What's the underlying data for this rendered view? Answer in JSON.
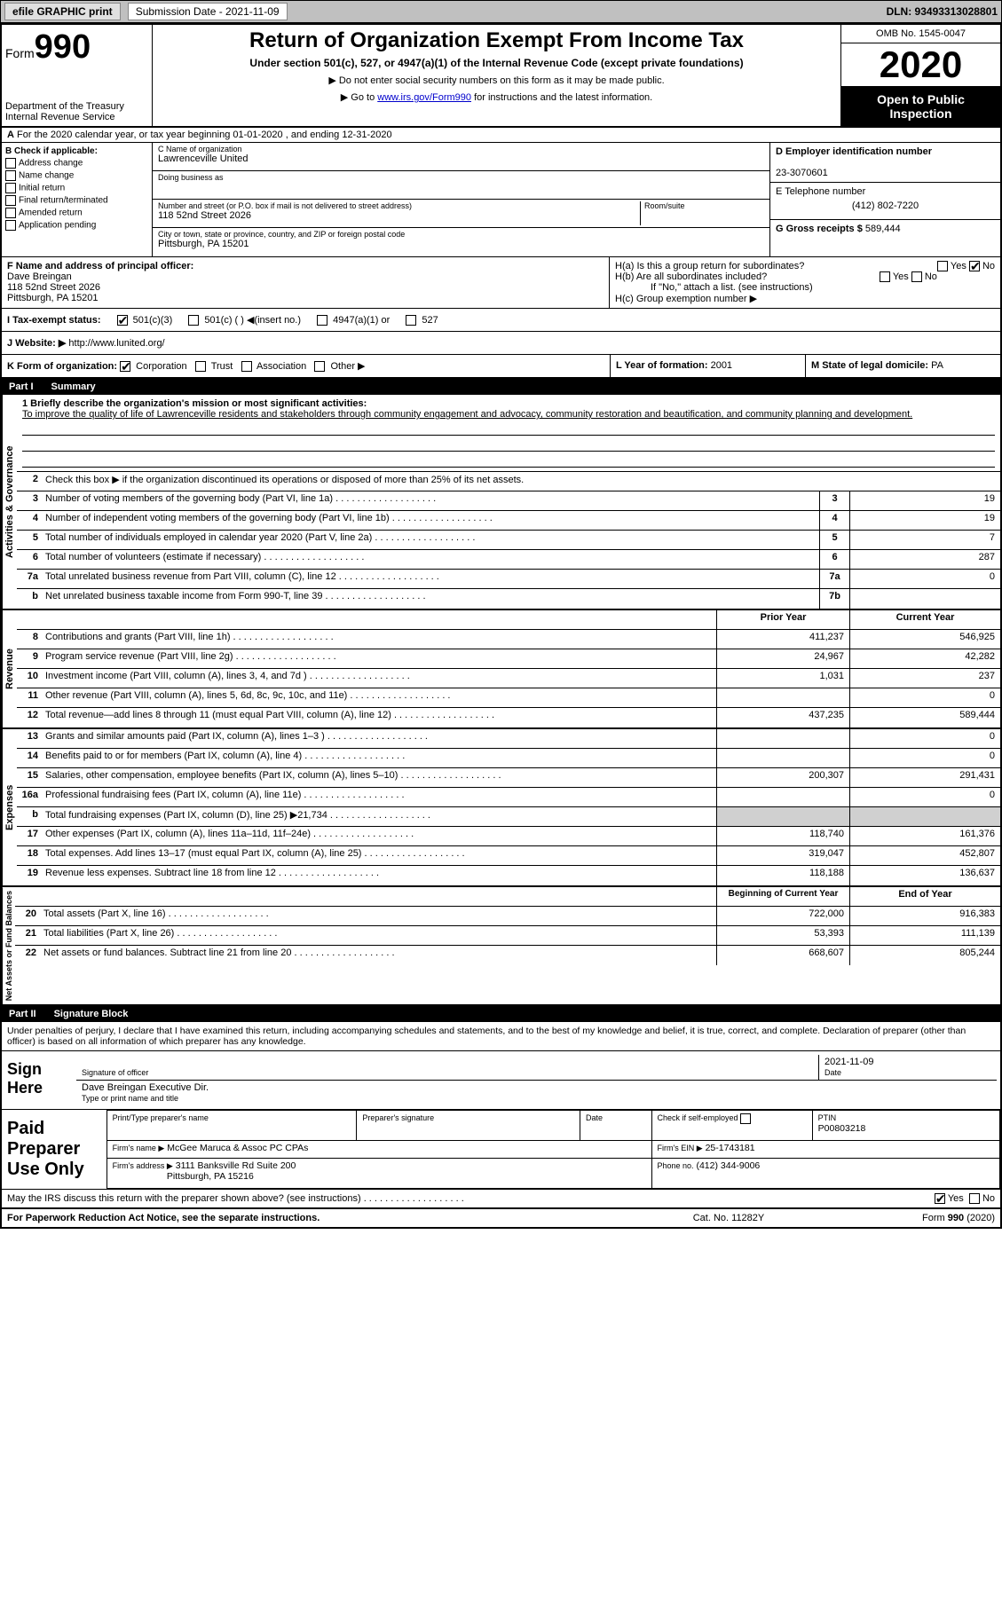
{
  "topbar": {
    "efile": "efile GRAPHIC print",
    "subdate_label": "Submission Date - 2021-11-09",
    "dln": "DLN: 93493313028801"
  },
  "header": {
    "form_label": "Form",
    "form_no": "990",
    "dept": "Department of the Treasury",
    "irs": "Internal Revenue Service",
    "title": "Return of Organization Exempt From Income Tax",
    "sub": "Under section 501(c), 527, or 4947(a)(1) of the Internal Revenue Code (except private foundations)",
    "note1": "▶ Do not enter social security numbers on this form as it may be made public.",
    "note2_pre": "▶ Go to ",
    "note2_link": "www.irs.gov/Form990",
    "note2_post": " for instructions and the latest information.",
    "omb": "OMB No. 1545-0047",
    "year": "2020",
    "inspect": "Open to Public Inspection"
  },
  "A": "For the 2020 calendar year, or tax year beginning 01-01-2020    , and ending 12-31-2020",
  "B": {
    "label": "B Check if applicable:",
    "opts": [
      "Address change",
      "Name change",
      "Initial return",
      "Final return/terminated",
      "Amended return",
      "Application pending"
    ]
  },
  "C": {
    "name_label": "C Name of organization",
    "name": "Lawrenceville United",
    "dba_label": "Doing business as",
    "dba": "",
    "addr_label": "Number and street (or P.O. box if mail is not delivered to street address)",
    "room_label": "Room/suite",
    "addr": "118 52nd Street 2026",
    "city_label": "City or town, state or province, country, and ZIP or foreign postal code",
    "city": "Pittsburgh, PA  15201"
  },
  "D": {
    "label": "D Employer identification number",
    "val": "23-3070601"
  },
  "E": {
    "label": "E Telephone number",
    "val": "(412) 802-7220"
  },
  "G": {
    "label": "G Gross receipts $",
    "val": "589,444"
  },
  "F": {
    "label": "F  Name and address of principal officer:",
    "name": "Dave Breingan",
    "addr1": "118 52nd Street 2026",
    "addr2": "Pittsburgh, PA  15201"
  },
  "H": {
    "a": "H(a)  Is this a group return for subordinates?",
    "b": "H(b)  Are all subordinates included?",
    "bnote": "If \"No,\" attach a list. (see instructions)",
    "c": "H(c)  Group exemption number ▶",
    "yes": "Yes",
    "no": "No"
  },
  "I": {
    "label": "I   Tax-exempt status:",
    "o1": "501(c)(3)",
    "o2": "501(c) (  ) ◀(insert no.)",
    "o3": "4947(a)(1) or",
    "o4": "527"
  },
  "J": {
    "label": "J   Website: ▶",
    "val": "http://www.lunited.org/"
  },
  "K": {
    "label": "K Form of organization:",
    "c": "Corporation",
    "t": "Trust",
    "a": "Association",
    "o": "Other ▶"
  },
  "L": {
    "label": "L Year of formation:",
    "val": "2001"
  },
  "M": {
    "label": "M State of legal domicile:",
    "val": "PA"
  },
  "part1": {
    "num": "Part I",
    "title": "Summary"
  },
  "summary": {
    "q1": "1   Briefly describe the organization's mission or most significant activities:",
    "mission": "To improve the quality of life of Lawrenceville residents and stakeholders through community engagement and advocacy, community restoration and beautification, and community planning and development.",
    "q2": "Check this box ▶       if the organization discontinued its operations or disposed of more than 25% of its net assets.",
    "rows_gov": [
      {
        "n": "3",
        "d": "Number of voting members of the governing body (Part VI, line 1a)",
        "b": "3",
        "v": "19"
      },
      {
        "n": "4",
        "d": "Number of independent voting members of the governing body (Part VI, line 1b)",
        "b": "4",
        "v": "19"
      },
      {
        "n": "5",
        "d": "Total number of individuals employed in calendar year 2020 (Part V, line 2a)",
        "b": "5",
        "v": "7"
      },
      {
        "n": "6",
        "d": "Total number of volunteers (estimate if necessary)",
        "b": "6",
        "v": "287"
      },
      {
        "n": "7a",
        "d": "Total unrelated business revenue from Part VIII, column (C), line 12",
        "b": "7a",
        "v": "0"
      },
      {
        "n": "b",
        "d": "Net unrelated business taxable income from Form 990-T, line 39",
        "b": "7b",
        "v": ""
      }
    ],
    "col_prior": "Prior Year",
    "col_curr": "Current Year",
    "rows_rev": [
      {
        "n": "8",
        "d": "Contributions and grants (Part VIII, line 1h)",
        "p": "411,237",
        "c": "546,925"
      },
      {
        "n": "9",
        "d": "Program service revenue (Part VIII, line 2g)",
        "p": "24,967",
        "c": "42,282"
      },
      {
        "n": "10",
        "d": "Investment income (Part VIII, column (A), lines 3, 4, and 7d )",
        "p": "1,031",
        "c": "237"
      },
      {
        "n": "11",
        "d": "Other revenue (Part VIII, column (A), lines 5, 6d, 8c, 9c, 10c, and 11e)",
        "p": "",
        "c": "0"
      },
      {
        "n": "12",
        "d": "Total revenue—add lines 8 through 11 (must equal Part VIII, column (A), line 12)",
        "p": "437,235",
        "c": "589,444"
      }
    ],
    "rows_exp": [
      {
        "n": "13",
        "d": "Grants and similar amounts paid (Part IX, column (A), lines 1–3 )",
        "p": "",
        "c": "0"
      },
      {
        "n": "14",
        "d": "Benefits paid to or for members (Part IX, column (A), line 4)",
        "p": "",
        "c": "0"
      },
      {
        "n": "15",
        "d": "Salaries, other compensation, employee benefits (Part IX, column (A), lines 5–10)",
        "p": "200,307",
        "c": "291,431"
      },
      {
        "n": "16a",
        "d": "Professional fundraising fees (Part IX, column (A), line 11e)",
        "p": "",
        "c": "0"
      },
      {
        "n": "b",
        "d": "Total fundraising expenses (Part IX, column (D), line 25) ▶21,734",
        "p": "__shade__",
        "c": "__shade__"
      },
      {
        "n": "17",
        "d": "Other expenses (Part IX, column (A), lines 11a–11d, 11f–24e)",
        "p": "118,740",
        "c": "161,376"
      },
      {
        "n": "18",
        "d": "Total expenses. Add lines 13–17 (must equal Part IX, column (A), line 25)",
        "p": "319,047",
        "c": "452,807"
      },
      {
        "n": "19",
        "d": "Revenue less expenses. Subtract line 18 from line 12",
        "p": "118,188",
        "c": "136,637"
      }
    ],
    "col_beg": "Beginning of Current Year",
    "col_end": "End of Year",
    "rows_net": [
      {
        "n": "20",
        "d": "Total assets (Part X, line 16)",
        "p": "722,000",
        "c": "916,383"
      },
      {
        "n": "21",
        "d": "Total liabilities (Part X, line 26)",
        "p": "53,393",
        "c": "111,139"
      },
      {
        "n": "22",
        "d": "Net assets or fund balances. Subtract line 21 from line 20",
        "p": "668,607",
        "c": "805,244"
      }
    ],
    "side_gov": "Activities & Governance",
    "side_rev": "Revenue",
    "side_exp": "Expenses",
    "side_net": "Net Assets or Fund Balances"
  },
  "part2": {
    "num": "Part II",
    "title": "Signature Block"
  },
  "sig": {
    "decl": "Under penalties of perjury, I declare that I have examined this return, including accompanying schedules and statements, and to the best of my knowledge and belief, it is true, correct, and complete. Declaration of preparer (other than officer) is based on all information of which preparer has any knowledge.",
    "sign_here": "Sign Here",
    "sig_officer": "Signature of officer",
    "date_label": "Date",
    "date": "2021-11-09",
    "name": "Dave Breingan  Executive Dir.",
    "typeprint": "Type or print name and title"
  },
  "prep": {
    "label": "Paid Preparer Use Only",
    "h_print": "Print/Type preparer's name",
    "h_sig": "Preparer's signature",
    "h_date": "Date",
    "h_self": "Check        if self-employed",
    "h_ptin": "PTIN",
    "ptin": "P00803218",
    "firm_label": "Firm's name     ▶",
    "firm": "McGee Maruca & Assoc PC CPAs",
    "ein_label": "Firm's EIN ▶",
    "ein": "25-1743181",
    "addr_label": "Firm's address ▶",
    "addr1": "3111 Banksville Rd Suite 200",
    "addr2": "Pittsburgh, PA  15216",
    "phone_label": "Phone no.",
    "phone": "(412) 344-9006"
  },
  "may": {
    "q": "May the IRS discuss this return with the preparer shown above? (see instructions)",
    "yes": "Yes",
    "no": "No"
  },
  "footer": {
    "l": "For Paperwork Reduction Act Notice, see the separate instructions.",
    "m": "Cat. No. 11282Y",
    "r": "Form 990 (2020)"
  }
}
